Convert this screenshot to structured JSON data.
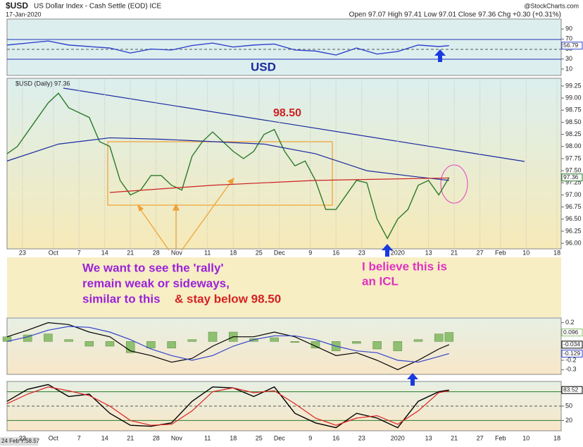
{
  "header": {
    "symbol": "$USD",
    "name": "US Dollar Index - Cash Settle (EOD) ICE",
    "date": "17-Jan-2020",
    "source": "@StockCharts.com",
    "quote": "Open 97.07 High 97.41 Low 97.01 Close 97.36 Chg +0.30 (+0.31%)"
  },
  "annotations": {
    "usd": "USD",
    "peak": "98.50",
    "note_left": [
      "We want to see the 'rally'",
      "remain weak or sideways,",
      "similar to this"
    ],
    "note_stay": "& stay below 98.50",
    "note_right": [
      "I believe this is",
      "an ICL"
    ],
    "cursor": "24 Feb Y:58.57"
  },
  "chart_data": [
    {
      "type": "line",
      "ylim": [
        0,
        110
      ],
      "yticks": [
        90,
        70,
        50,
        30,
        10
      ],
      "series": [
        {
          "type": "line",
          "color": "#3344cc",
          "x": [
            0,
            4,
            8,
            12,
            16,
            20,
            24,
            28,
            32,
            36,
            40,
            44,
            48,
            52,
            56,
            60,
            64,
            68,
            72,
            76,
            80,
            84,
            86
          ],
          "values": [
            58,
            62,
            66,
            58,
            55,
            52,
            42,
            50,
            48,
            57,
            62,
            54,
            58,
            60,
            48,
            46,
            38,
            52,
            40,
            45,
            58,
            55,
            56.79
          ]
        }
      ]
    },
    {
      "type": "line",
      "title": "$USD (Daily) 97.36",
      "ylim": [
        95.9,
        99.38
      ],
      "yticks": [
        99.25,
        {
          "value": 99.0,
          "label": "99.00"
        },
        98.75,
        {
          "value": 98.5,
          "label": "98.50"
        },
        98.25,
        {
          "value": 98.0,
          "label": "98.00"
        },
        97.75,
        {
          "value": 97.5,
          "label": "97.50"
        },
        97.25,
        {
          "value": 97.0,
          "label": "97.00"
        },
        96.75,
        {
          "value": 96.5,
          "label": "96.50"
        },
        96.25,
        {
          "value": 96.0,
          "label": "96.00"
        }
      ],
      "xticks": [
        {
          "value": 3,
          "label": "23"
        },
        {
          "value": 9,
          "label": "Oct"
        },
        {
          "value": 14,
          "label": "7"
        },
        {
          "value": 19,
          "label": "14"
        },
        {
          "value": 24,
          "label": "21"
        },
        {
          "value": 29,
          "label": "28"
        },
        {
          "value": 33,
          "label": "Nov"
        },
        {
          "value": 39,
          "label": "11"
        },
        {
          "value": 44,
          "label": "18"
        },
        {
          "value": 49,
          "label": "25"
        },
        {
          "value": 53,
          "label": "Dec"
        },
        {
          "value": 59,
          "label": "9"
        },
        {
          "value": 64,
          "label": "16"
        },
        {
          "value": 69,
          "label": "23"
        },
        {
          "value": 76,
          "label": "2020"
        },
        {
          "value": 82,
          "label": "13"
        },
        {
          "value": 87,
          "label": "21"
        },
        {
          "value": 92,
          "label": "27"
        },
        {
          "value": 96,
          "label": "Feb"
        },
        {
          "value": 101,
          "label": "10"
        },
        {
          "value": 107,
          "label": "18"
        }
      ],
      "series": [
        {
          "type": "line",
          "color": "#2a7a2a",
          "x": [
            0,
            2,
            4,
            6,
            8,
            10,
            12,
            14,
            16,
            18,
            20,
            22,
            24,
            26,
            28,
            30,
            32,
            34,
            36,
            38,
            40,
            42,
            44,
            46,
            48,
            50,
            52,
            54,
            56,
            58,
            60,
            62,
            64,
            66,
            68,
            70,
            72,
            74,
            76,
            78,
            80,
            82,
            84,
            86
          ],
          "values": [
            97.85,
            98.0,
            98.3,
            98.6,
            98.9,
            99.1,
            98.8,
            98.7,
            98.6,
            98.1,
            98.0,
            97.3,
            97.0,
            97.1,
            97.4,
            97.4,
            97.2,
            97.1,
            97.8,
            98.1,
            98.3,
            98.1,
            97.9,
            97.75,
            97.9,
            98.25,
            98.35,
            97.9,
            97.6,
            97.7,
            97.3,
            96.7,
            96.7,
            97.0,
            97.3,
            97.25,
            96.5,
            96.1,
            96.5,
            96.7,
            97.2,
            97.3,
            97.0,
            97.36
          ]
        },
        {
          "type": "line",
          "color": "#1a2aa0",
          "x": [
            0,
            10,
            20,
            30,
            40,
            50,
            60,
            70,
            80,
            86
          ],
          "values": [
            97.7,
            98.05,
            98.18,
            98.15,
            98.1,
            98.05,
            97.85,
            97.5,
            97.37,
            97.3
          ]
        },
        {
          "type": "line",
          "color": "#cc2222",
          "x": [
            20,
            40,
            60,
            86
          ],
          "values": [
            97.05,
            97.2,
            97.3,
            97.35
          ]
        }
      ]
    },
    {
      "type": "line",
      "ylim": [
        -0.35,
        0.25
      ],
      "yticks": [
        0.2,
        -0.2,
        -0.3
      ],
      "series": [
        {
          "type": "bar",
          "color": "#8fbf70",
          "x": [
            0,
            4,
            8,
            12,
            16,
            20,
            24,
            28,
            32,
            36,
            40,
            44,
            48,
            52,
            56,
            60,
            64,
            68,
            72,
            76,
            80,
            84,
            86
          ],
          "values": [
            0.05,
            0.07,
            0.08,
            0.02,
            -0.05,
            -0.05,
            -0.12,
            -0.07,
            -0.07,
            0.02,
            0.1,
            0.1,
            0.03,
            0.04,
            -0.01,
            -0.07,
            -0.1,
            -0.02,
            -0.08,
            -0.1,
            0.02,
            0.08,
            0.096
          ]
        },
        {
          "type": "line",
          "color": "#000000",
          "x": [
            0,
            4,
            8,
            12,
            16,
            20,
            24,
            28,
            32,
            36,
            40,
            44,
            48,
            52,
            56,
            60,
            64,
            68,
            72,
            76,
            80,
            84,
            86
          ],
          "values": [
            0.05,
            0.12,
            0.2,
            0.18,
            0.1,
            0.05,
            -0.1,
            -0.15,
            -0.22,
            -0.18,
            -0.05,
            0.05,
            0.05,
            0.1,
            0.05,
            -0.05,
            -0.15,
            -0.12,
            -0.2,
            -0.3,
            -0.2,
            -0.08,
            -0.034
          ]
        },
        {
          "type": "line",
          "color": "#3344cc",
          "x": [
            0,
            4,
            8,
            12,
            16,
            20,
            24,
            28,
            32,
            36,
            40,
            44,
            48,
            52,
            56,
            60,
            64,
            68,
            72,
            76,
            80,
            84,
            86
          ],
          "values": [
            0.0,
            0.05,
            0.12,
            0.16,
            0.15,
            0.1,
            0.02,
            -0.08,
            -0.15,
            -0.2,
            -0.15,
            -0.05,
            0.02,
            0.06,
            0.06,
            0.02,
            -0.05,
            -0.1,
            -0.12,
            -0.2,
            -0.22,
            -0.16,
            -0.129
          ]
        }
      ]
    },
    {
      "type": "line",
      "ylim": [
        0,
        100
      ],
      "yticks": [
        80,
        50,
        20
      ],
      "series": [
        {
          "type": "line",
          "color": "#000000",
          "x": [
            0,
            4,
            8,
            12,
            16,
            20,
            24,
            28,
            32,
            36,
            40,
            44,
            48,
            52,
            56,
            60,
            64,
            68,
            72,
            76,
            80,
            84,
            86
          ],
          "values": [
            60,
            85,
            95,
            70,
            75,
            35,
            10,
            8,
            15,
            60,
            90,
            88,
            70,
            90,
            35,
            15,
            5,
            35,
            25,
            5,
            60,
            80,
            83.52
          ]
        },
        {
          "type": "line",
          "color": "#dd2222",
          "x": [
            0,
            4,
            8,
            12,
            16,
            20,
            24,
            28,
            32,
            36,
            40,
            44,
            48,
            52,
            56,
            60,
            64,
            68,
            72,
            76,
            80,
            84,
            86
          ],
          "values": [
            55,
            75,
            90,
            82,
            72,
            50,
            20,
            10,
            12,
            40,
            80,
            88,
            78,
            82,
            55,
            25,
            10,
            25,
            30,
            12,
            40,
            78,
            82
          ]
        }
      ]
    }
  ]
}
